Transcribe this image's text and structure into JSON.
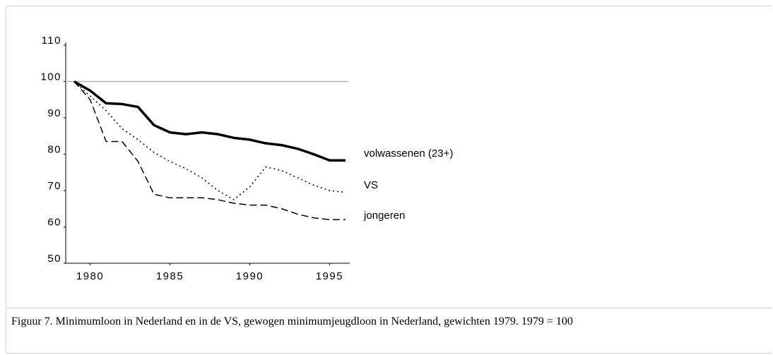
{
  "chart_data": {
    "type": "line",
    "caption": "Figuur 7. Minimumloon in Nederland en in de VS, gewogen minimumjeugdloon in Nederland, gewichten 1979. 1979 = 100",
    "x": [
      1979,
      1980,
      1981,
      1982,
      1983,
      1984,
      1985,
      1986,
      1987,
      1988,
      1989,
      1990,
      1991,
      1992,
      1993,
      1994,
      1995,
      1996
    ],
    "series": [
      {
        "name": "volwassenen (23+)",
        "color": "#000000",
        "style": "solid",
        "values": [
          100,
          97.5,
          94,
          93.8,
          93,
          88,
          86,
          85.5,
          86,
          85.5,
          84.5,
          84,
          83,
          82.5,
          81.5,
          80,
          78.3,
          78.3
        ]
      },
      {
        "name": "VS",
        "color": "#000000",
        "style": "dotted",
        "values": [
          100,
          96,
          92,
          87,
          84,
          80.5,
          78,
          76,
          73.5,
          70,
          67.5,
          71,
          76.5,
          75.5,
          73.5,
          71.5,
          70,
          69.5
        ]
      },
      {
        "name": "jongeren",
        "color": "#000000",
        "style": "dashed",
        "values": [
          100,
          95,
          83.5,
          83.5,
          78,
          69,
          68,
          68,
          68,
          67.5,
          66.5,
          66,
          66,
          65,
          63.5,
          62.5,
          62,
          62
        ]
      }
    ],
    "reference_line": 100,
    "xlim": [
      1979,
      1996
    ],
    "xticks": [
      1980,
      1985,
      1990,
      1995
    ],
    "ylim": [
      50,
      110
    ],
    "yticks": [
      50,
      60,
      70,
      80,
      90,
      100,
      110
    ]
  }
}
